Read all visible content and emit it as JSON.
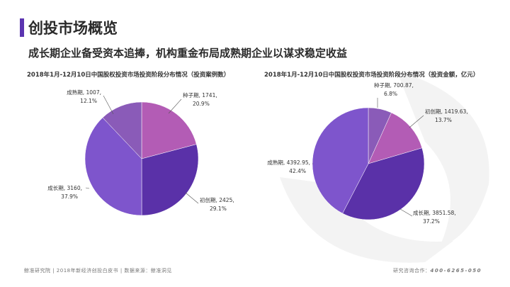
{
  "page": {
    "title": "创投市场概览",
    "subtitle": "成长期企业备受资本追捧，机构重金布局成熟期企业以谋求稳定收益"
  },
  "footer": {
    "left": "鲸准研究院 | 2018年新经济创投白皮书 | 数据来源：鲸准洞见",
    "right_label": "研究咨询合作：",
    "phone": "400-6265-050"
  },
  "colors": {
    "accent": "#5b34b0",
    "watermark": "#f2f2f2"
  },
  "chart_data": [
    {
      "type": "pie",
      "title": "2018年1月-12月10日中国股权投资市场投资阶段分布情况（投资案例数）",
      "slices": [
        {
          "name": "种子期",
          "value": 1741,
          "percent": "20.9%",
          "color": "#b35cb5"
        },
        {
          "name": "初创期",
          "value": 2425,
          "percent": "29.1%",
          "color": "#5a31a8"
        },
        {
          "name": "成长期",
          "value": 3160,
          "percent": "37.9%",
          "color": "#7e55cc"
        },
        {
          "name": "成熟期",
          "value": 1007,
          "percent": "12.1%",
          "color": "#8a5bb8"
        }
      ]
    },
    {
      "type": "pie",
      "title": "2018年1月-12月10日中国股权投资市场投资阶段分布情况（投资金额，亿元）",
      "slices": [
        {
          "name": "种子期",
          "value": 700.87,
          "percent": "6.8%",
          "color": "#8a5bb8"
        },
        {
          "name": "初创期",
          "value": 1419.63,
          "percent": "13.7%",
          "color": "#b35cb5"
        },
        {
          "name": "成长期",
          "value": 3851.58,
          "percent": "37.2%",
          "color": "#5a31a8"
        },
        {
          "name": "成熟期",
          "value": 4392.95,
          "percent": "42.4%",
          "color": "#7e55cc"
        }
      ]
    }
  ]
}
